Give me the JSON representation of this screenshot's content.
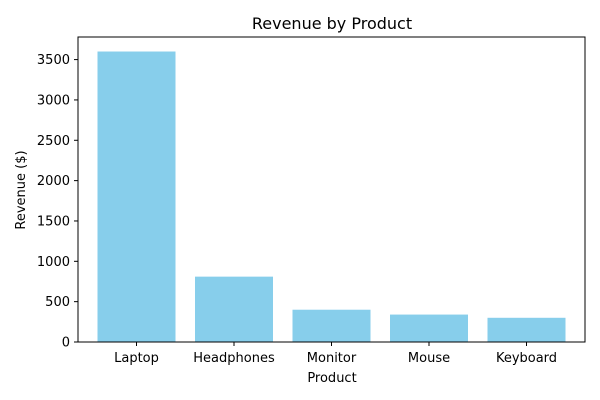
{
  "chart_data": {
    "type": "bar",
    "title": "Revenue by Product",
    "xlabel": "Product",
    "ylabel": "Revenue ($)",
    "categories": [
      "Laptop",
      "Headphones",
      "Monitor",
      "Mouse",
      "Keyboard"
    ],
    "values": [
      3600,
      810,
      400,
      340,
      300
    ],
    "ylim": [
      0,
      3780
    ],
    "yticks": [
      0,
      500,
      1000,
      1500,
      2000,
      2500,
      3000,
      3500
    ],
    "grid": false,
    "bar_color": "#87ceeb",
    "axis_color": "#000000"
  }
}
